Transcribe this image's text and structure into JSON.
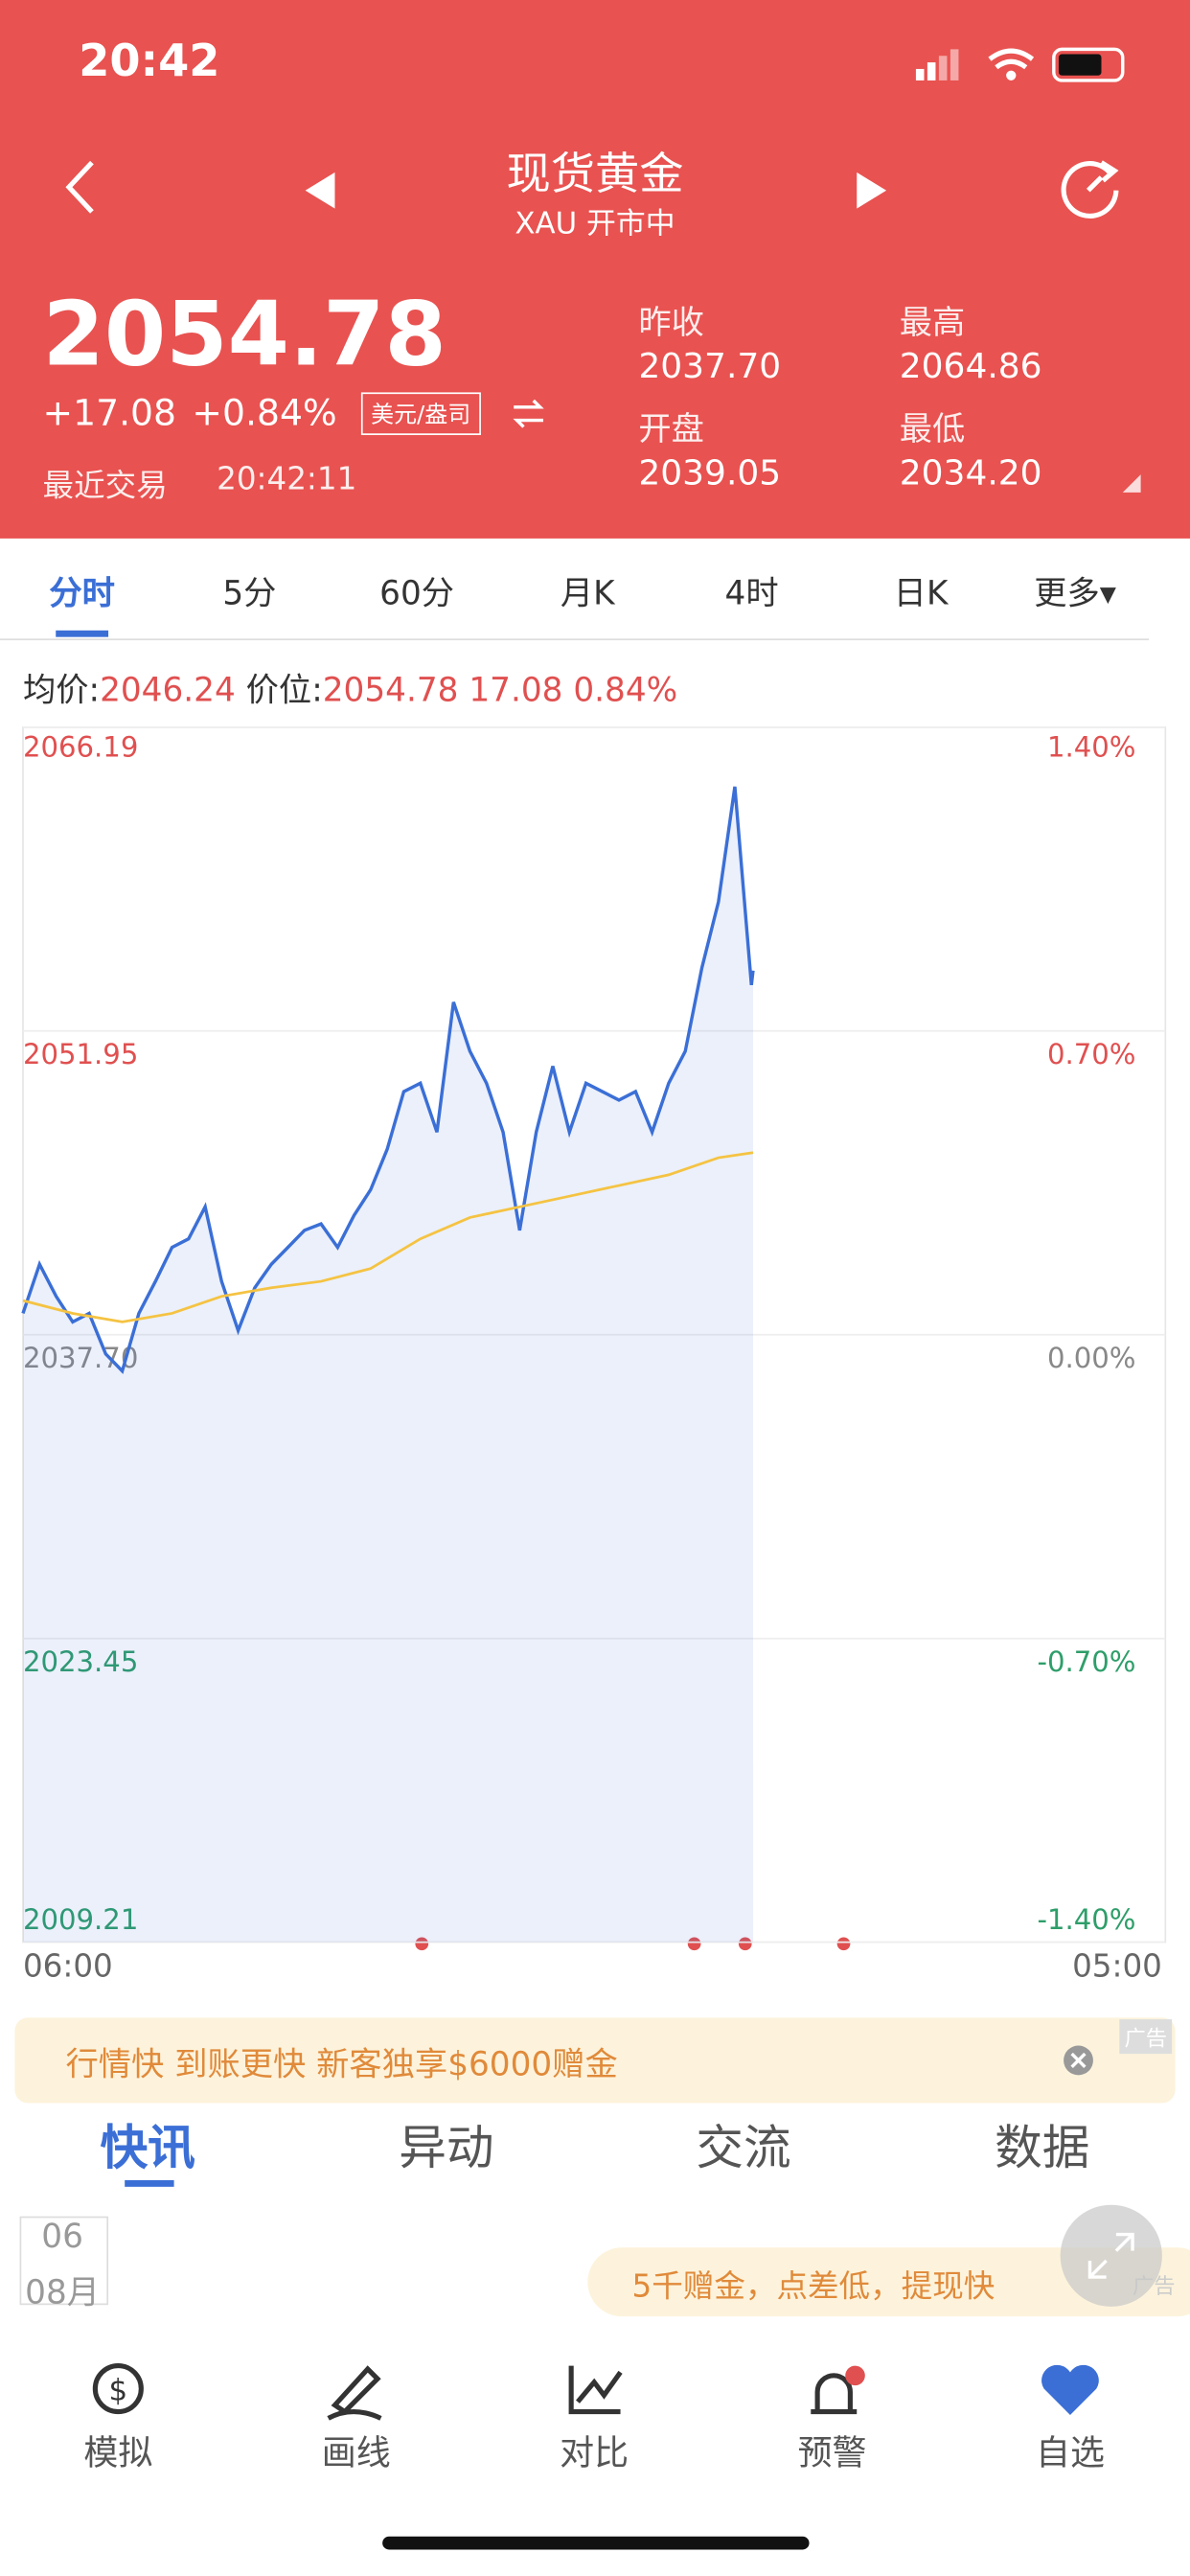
{
  "status": {
    "time": "20:42"
  },
  "header": {
    "title": "现货黄金",
    "subtitle": "XAU 开市中"
  },
  "quote": {
    "price": "2054.78",
    "change": "+17.08",
    "change_pct": "+0.84%",
    "unit": "美元/盎司",
    "last_trade_label": "最近交易",
    "last_trade_time": "20:42:11",
    "stats": [
      {
        "label": "昨收",
        "value": "2037.70"
      },
      {
        "label": "开盘",
        "value": "2039.05"
      },
      {
        "label": "最高",
        "value": "2064.86"
      },
      {
        "label": "最低",
        "value": "2034.20"
      }
    ]
  },
  "tabs": [
    "分时",
    "5分",
    "60分",
    "月K",
    "4时",
    "日K",
    "更多"
  ],
  "info": {
    "avg_label": "均价:",
    "avg": "2046.24",
    "price_label": "价位:",
    "price": "2054.78",
    "change": "17.08",
    "pct": "0.84%"
  },
  "chart": {
    "type": "line",
    "xlim": [
      "06:00",
      "05:00"
    ],
    "ylim": [
      2009.21,
      2066.19
    ],
    "yticks": [
      2009.21,
      2023.45,
      {
        "value": 2037.7,
        "label": "2037.70"
      },
      2051.95,
      2066.19
    ],
    "y2lim": [
      -1.4,
      1.4
    ],
    "y2ticks": [
      {
        "value": -1.4,
        "label": "-1.40%"
      },
      {
        "value": -0.7,
        "label": "-0.70%"
      },
      {
        "value": 0,
        "label": "0.00%"
      },
      {
        "value": 0.7,
        "label": "0.70%"
      },
      {
        "value": 1.4,
        "label": "1.40%"
      }
    ],
    "series": [
      {
        "name": "价位",
        "color": "#3b6fd6",
        "x": [
          "06:00",
          "06:20",
          "06:40",
          "07:00",
          "07:20",
          "07:40",
          "08:00",
          "08:20",
          "08:40",
          "09:00",
          "09:20",
          "09:40",
          "10:00",
          "10:20",
          "10:40",
          "11:00",
          "11:20",
          "11:40",
          "12:00",
          "12:20",
          "12:40",
          "13:00",
          "13:20",
          "13:40",
          "14:00",
          "14:20",
          "14:40",
          "15:00",
          "15:20",
          "15:40",
          "16:00",
          "16:20",
          "16:40",
          "17:00",
          "17:20",
          "17:40",
          "18:00",
          "18:20",
          "18:40",
          "19:00",
          "19:20",
          "19:40",
          "20:00",
          "20:20",
          "20:40",
          "20:42"
        ],
        "values": [
          2038.7,
          2041.0,
          2039.5,
          2038.3,
          2038.7,
          2036.8,
          2036.0,
          2038.7,
          2040.2,
          2041.8,
          2042.2,
          2043.7,
          2040.2,
          2037.9,
          2039.9,
          2041.0,
          2041.8,
          2042.6,
          2042.9,
          2041.8,
          2043.3,
          2044.5,
          2046.4,
          2049.1,
          2049.5,
          2047.2,
          2053.3,
          2051.0,
          2049.5,
          2047.2,
          2042.6,
          2047.2,
          2050.3,
          2047.2,
          2049.5,
          2049.1,
          2048.7,
          2049.1,
          2047.2,
          2049.5,
          2051.0,
          2054.9,
          2058.0,
          2063.4,
          2054.1,
          2054.78
        ]
      },
      {
        "name": "均价",
        "color": "#f5c342",
        "x": [
          "06:00",
          "07:00",
          "08:00",
          "09:00",
          "10:00",
          "11:00",
          "12:00",
          "13:00",
          "14:00",
          "15:00",
          "16:00",
          "17:00",
          "18:00",
          "19:00",
          "20:00",
          "20:42"
        ],
        "values": [
          2039.3,
          2038.7,
          2038.3,
          2038.7,
          2039.5,
          2039.9,
          2040.2,
          2040.8,
          2042.2,
          2043.2,
          2043.7,
          2044.2,
          2044.7,
          2045.2,
          2046.0,
          2046.24
        ]
      }
    ]
  },
  "ad": {
    "text": "行情快 到账更快 新客独享$6000赠金",
    "tag": "广告"
  },
  "news_tabs": [
    "快讯",
    "异动",
    "交流",
    "数据"
  ],
  "date": {
    "day": "06",
    "month": "08月"
  },
  "ad2": {
    "text": "5千赠金，点差低，提现快",
    "tag": "广告"
  },
  "toolbar": [
    "模拟",
    "画线",
    "对比",
    "预警",
    "自选"
  ]
}
